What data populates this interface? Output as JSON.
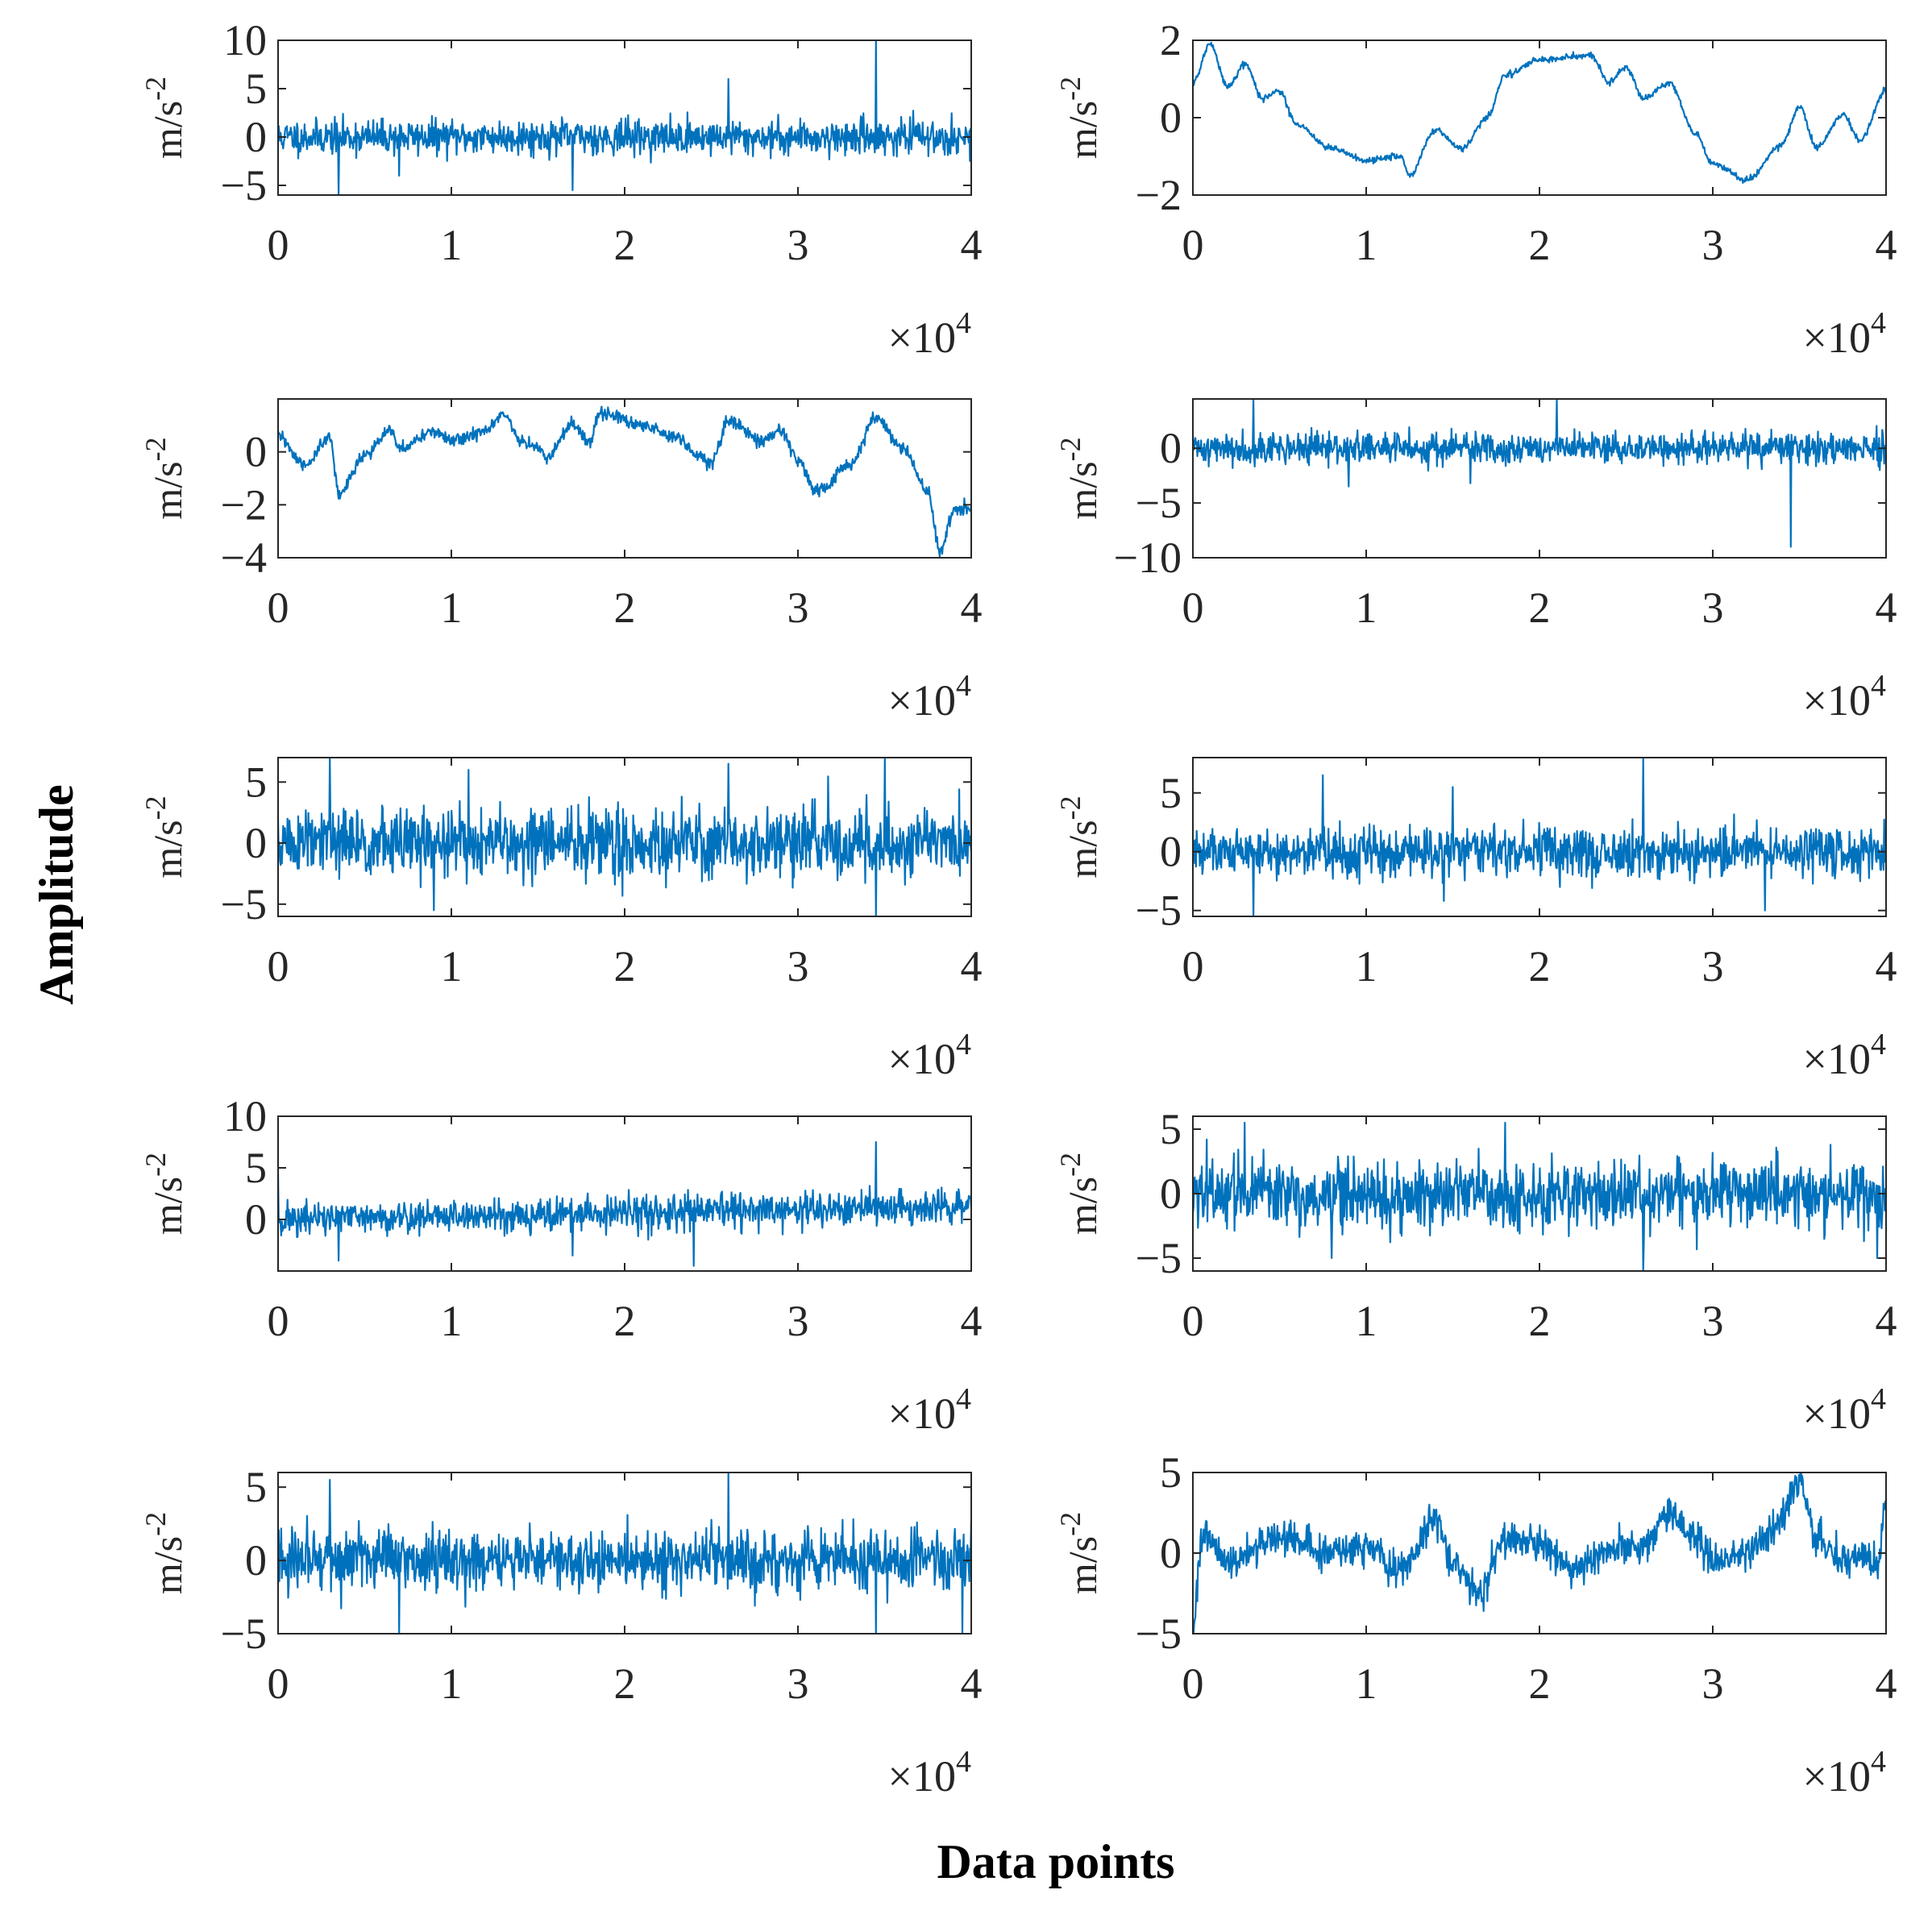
{
  "figure": {
    "global_ylabel": "Amplitude",
    "global_xlabel": "Data points"
  },
  "colors": {
    "line": "#0072bd",
    "axis": "#262626"
  },
  "chart_data": [
    {
      "type": "line",
      "ylabel_base": "m/s",
      "ylabel_exp": "-2",
      "xlim": [
        0,
        4
      ],
      "ylim": [
        -6,
        10
      ],
      "xticks": [
        "0",
        "1",
        "2",
        "3",
        "4"
      ],
      "yticks": [
        {
          "v": -5,
          "label": "−5"
        },
        {
          "v": 0,
          "label": "0"
        },
        {
          "v": 5,
          "label": "5"
        },
        {
          "v": 10,
          "label": "10"
        }
      ],
      "x_multiplier": {
        "base": "×10",
        "exp": "4"
      },
      "signal": {
        "kind": "noise",
        "amplitude": 1.6,
        "offset": 0.0,
        "seed": 11,
        "spikes": [
          [
            0.35,
            -6
          ],
          [
            1.7,
            -5.5
          ],
          [
            2.6,
            6
          ],
          [
            3.45,
            10
          ],
          [
            0.7,
            -4
          ]
        ]
      }
    },
    {
      "type": "line",
      "ylabel_base": "m/s",
      "ylabel_exp": "-2",
      "xlim": [
        0,
        4
      ],
      "ylim": [
        -2,
        2
      ],
      "xticks": [
        "0",
        "1",
        "2",
        "3",
        "4"
      ],
      "yticks": [
        {
          "v": -2,
          "label": "−2"
        },
        {
          "v": 0,
          "label": "0"
        },
        {
          "v": 2,
          "label": "2"
        }
      ],
      "x_multiplier": {
        "base": "×10",
        "exp": "4"
      },
      "signal": {
        "kind": "smooth",
        "seed": 21,
        "noise": 0.04,
        "knots": [
          [
            0,
            0.9
          ],
          [
            0.1,
            1.9
          ],
          [
            0.2,
            0.8
          ],
          [
            0.3,
            1.4
          ],
          [
            0.4,
            0.5
          ],
          [
            0.5,
            0.7
          ],
          [
            0.6,
            -0.2
          ],
          [
            0.8,
            -0.8
          ],
          [
            1.0,
            -1.1
          ],
          [
            1.2,
            -1.0
          ],
          [
            1.25,
            -1.5
          ],
          [
            1.4,
            -0.3
          ],
          [
            1.55,
            -0.8
          ],
          [
            1.7,
            0.0
          ],
          [
            1.8,
            1.1
          ],
          [
            2.0,
            1.5
          ],
          [
            2.3,
            1.6
          ],
          [
            2.4,
            0.9
          ],
          [
            2.5,
            1.3
          ],
          [
            2.6,
            0.5
          ],
          [
            2.75,
            0.9
          ],
          [
            2.9,
            -0.4
          ],
          [
            3.0,
            -1.2
          ],
          [
            3.2,
            -1.6
          ],
          [
            3.4,
            -0.7
          ],
          [
            3.5,
            0.3
          ],
          [
            3.6,
            -0.8
          ],
          [
            3.75,
            0.1
          ],
          [
            3.85,
            -0.6
          ],
          [
            4.0,
            0.7
          ]
        ]
      }
    },
    {
      "type": "line",
      "ylabel_base": "m/s",
      "ylabel_exp": "-2",
      "xlim": [
        0,
        4
      ],
      "ylim": [
        -4,
        2
      ],
      "xticks": [
        "0",
        "1",
        "2",
        "3",
        "4"
      ],
      "yticks": [
        {
          "v": -4,
          "label": "−4"
        },
        {
          "v": -2,
          "label": "−2"
        },
        {
          "v": 0,
          "label": "0"
        }
      ],
      "x_multiplier": {
        "base": "×10",
        "exp": "4"
      },
      "signal": {
        "kind": "smooth",
        "seed": 31,
        "noise": 0.12,
        "knots": [
          [
            0,
            0.6
          ],
          [
            0.15,
            -0.5
          ],
          [
            0.3,
            0.5
          ],
          [
            0.35,
            -1.6
          ],
          [
            0.5,
            -0.1
          ],
          [
            0.65,
            0.8
          ],
          [
            0.7,
            0.1
          ],
          [
            0.9,
            0.8
          ],
          [
            1.0,
            0.4
          ],
          [
            1.2,
            0.8
          ],
          [
            1.3,
            1.4
          ],
          [
            1.4,
            0.4
          ],
          [
            1.5,
            0.2
          ],
          [
            1.55,
            -0.2
          ],
          [
            1.7,
            1.0
          ],
          [
            1.8,
            0.3
          ],
          [
            1.85,
            1.5
          ],
          [
            2.1,
            1.0
          ],
          [
            2.3,
            0.6
          ],
          [
            2.4,
            0.0
          ],
          [
            2.5,
            -0.4
          ],
          [
            2.6,
            1.2
          ],
          [
            2.8,
            0.4
          ],
          [
            2.9,
            0.8
          ],
          [
            3.0,
            -0.3
          ],
          [
            3.1,
            -1.5
          ],
          [
            3.3,
            -0.5
          ],
          [
            3.45,
            1.3
          ],
          [
            3.6,
            0.2
          ],
          [
            3.75,
            -1.5
          ],
          [
            3.82,
            -3.7
          ],
          [
            3.9,
            -2.2
          ],
          [
            4.0,
            -2.1
          ]
        ]
      }
    },
    {
      "type": "line",
      "ylabel_base": "m/s",
      "ylabel_exp": "-2",
      "xlim": [
        0,
        4
      ],
      "ylim": [
        -10,
        4.5
      ],
      "xticks": [
        "0",
        "1",
        "2",
        "3",
        "4"
      ],
      "yticks": [
        {
          "v": -10,
          "label": "−10"
        },
        {
          "v": -5,
          "label": "−5"
        },
        {
          "v": 0,
          "label": "0"
        }
      ],
      "x_multiplier": {
        "base": "×10",
        "exp": "4"
      },
      "signal": {
        "kind": "noise",
        "amplitude": 1.3,
        "offset": 0.0,
        "seed": 41,
        "spikes": [
          [
            0.35,
            4.5
          ],
          [
            2.1,
            4.5
          ],
          [
            3.45,
            -9
          ],
          [
            0.9,
            -3.5
          ],
          [
            1.6,
            -3.2
          ]
        ]
      }
    },
    {
      "type": "line",
      "ylabel_base": "m/s",
      "ylabel_exp": "-2",
      "xlim": [
        0,
        4
      ],
      "ylim": [
        -6,
        7
      ],
      "xticks": [
        "0",
        "1",
        "2",
        "3",
        "4"
      ],
      "yticks": [
        {
          "v": -5,
          "label": "−5"
        },
        {
          "v": 0,
          "label": "0"
        },
        {
          "v": 5,
          "label": "5"
        }
      ],
      "x_multiplier": {
        "base": "×10",
        "exp": "4"
      },
      "signal": {
        "kind": "noise",
        "amplitude": 2.6,
        "offset": 0.0,
        "seed": 51,
        "spikes": [
          [
            0.3,
            7
          ],
          [
            3.45,
            -6
          ],
          [
            3.5,
            7
          ],
          [
            2.6,
            6.5
          ],
          [
            0.9,
            -5.5
          ],
          [
            1.1,
            6
          ]
        ]
      }
    },
    {
      "type": "line",
      "ylabel_base": "m/s",
      "ylabel_exp": "-2",
      "xlim": [
        0,
        4
      ],
      "ylim": [
        -5.5,
        8
      ],
      "xticks": [
        "0",
        "1",
        "2",
        "3",
        "4"
      ],
      "yticks": [
        {
          "v": -5,
          "label": "−5"
        },
        {
          "v": 0,
          "label": "0"
        },
        {
          "v": 5,
          "label": "5"
        }
      ],
      "x_multiplier": {
        "base": "×10",
        "exp": "4"
      },
      "signal": {
        "kind": "noise",
        "amplitude": 1.9,
        "offset": 0.0,
        "seed": 61,
        "spikes": [
          [
            0.35,
            -5.5
          ],
          [
            0.75,
            6.5
          ],
          [
            2.6,
            8
          ],
          [
            3.3,
            -5
          ],
          [
            1.5,
            5.5
          ]
        ]
      }
    },
    {
      "type": "line",
      "ylabel_base": "m/s",
      "ylabel_exp": "-2",
      "xlim": [
        0,
        4
      ],
      "ylim": [
        -5,
        10
      ],
      "xticks": [
        "0",
        "1",
        "2",
        "3",
        "4"
      ],
      "yticks": [
        {
          "v": 0,
          "label": "0"
        },
        {
          "v": 5,
          "label": "5"
        },
        {
          "v": 10,
          "label": "10"
        }
      ],
      "x_multiplier": {
        "base": "×10",
        "exp": "4"
      },
      "signal": {
        "kind": "noise",
        "amplitude": 1.5,
        "offset": 0.0,
        "seed": 71,
        "trend": 0.3,
        "spikes": [
          [
            3.45,
            7.5
          ],
          [
            2.4,
            -4.5
          ],
          [
            0.35,
            -4
          ],
          [
            1.7,
            -3.5
          ],
          [
            0.0,
            4.5
          ]
        ]
      }
    },
    {
      "type": "line",
      "ylabel_base": "m/s",
      "ylabel_exp": "-2",
      "xlim": [
        0,
        4
      ],
      "ylim": [
        -6,
        6
      ],
      "xticks": [
        "0",
        "1",
        "2",
        "3",
        "4"
      ],
      "yticks": [
        {
          "v": -5,
          "label": "−5"
        },
        {
          "v": 0,
          "label": "0"
        },
        {
          "v": 5,
          "label": "5"
        }
      ],
      "x_multiplier": {
        "base": "×10",
        "exp": "4"
      },
      "signal": {
        "kind": "noise",
        "amplitude": 2.4,
        "offset": 0.0,
        "seed": 81,
        "spikes": [
          [
            2.6,
            -6
          ],
          [
            0.3,
            5.5
          ],
          [
            1.8,
            5.5
          ],
          [
            3.95,
            -5
          ],
          [
            0.8,
            -5
          ]
        ]
      }
    },
    {
      "type": "line",
      "ylabel_base": "m/s",
      "ylabel_exp": "-2",
      "xlim": [
        0,
        4
      ],
      "ylim": [
        -5,
        6
      ],
      "xticks": [
        "0",
        "1",
        "2",
        "3",
        "4"
      ],
      "yticks": [
        {
          "v": -5,
          "label": "−5"
        },
        {
          "v": 0,
          "label": "0"
        },
        {
          "v": 5,
          "label": "5"
        }
      ],
      "x_multiplier": {
        "base": "×10",
        "exp": "4"
      },
      "signal": {
        "kind": "noise",
        "amplitude": 1.9,
        "offset": 0.0,
        "seed": 91,
        "spikes": [
          [
            2.6,
            6
          ],
          [
            0.3,
            5.5
          ],
          [
            0.7,
            -5
          ],
          [
            3.45,
            -5
          ],
          [
            3.95,
            -5
          ]
        ]
      }
    },
    {
      "type": "line",
      "ylabel_base": "m/s",
      "ylabel_exp": "-2",
      "xlim": [
        0,
        4
      ],
      "ylim": [
        -5,
        5
      ],
      "xticks": [
        "0",
        "1",
        "2",
        "3",
        "4"
      ],
      "yticks": [
        {
          "v": -5,
          "label": "−5"
        },
        {
          "v": 0,
          "label": "0"
        },
        {
          "v": 5,
          "label": "5"
        }
      ],
      "x_multiplier": {
        "base": "×10",
        "exp": "4"
      },
      "signal": {
        "kind": "smooth",
        "seed": 101,
        "noise": 0.55,
        "knots": [
          [
            0,
            -5
          ],
          [
            0.05,
            1.0
          ],
          [
            0.2,
            -0.5
          ],
          [
            0.5,
            1.0
          ],
          [
            0.8,
            0.0
          ],
          [
            1.0,
            0.5
          ],
          [
            1.2,
            -1.0
          ],
          [
            1.4,
            2.0
          ],
          [
            1.5,
            -0.5
          ],
          [
            1.65,
            -2.5
          ],
          [
            1.8,
            1.0
          ],
          [
            2.0,
            0.5
          ],
          [
            2.2,
            -1.0
          ],
          [
            2.4,
            0.0
          ],
          [
            2.6,
            0.5
          ],
          [
            2.75,
            2.5
          ],
          [
            2.9,
            1.0
          ],
          [
            3.0,
            -0.5
          ],
          [
            3.2,
            0.0
          ],
          [
            3.35,
            1.5
          ],
          [
            3.5,
            4.5
          ],
          [
            3.6,
            1.0
          ],
          [
            3.75,
            -0.5
          ],
          [
            3.85,
            0.0
          ],
          [
            3.95,
            -1.0
          ],
          [
            4.0,
            3.5
          ]
        ]
      }
    }
  ]
}
